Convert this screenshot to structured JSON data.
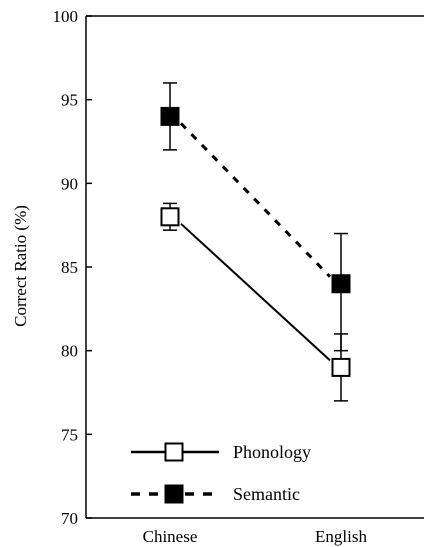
{
  "chart_data": {
    "type": "line",
    "categories": [
      "Chinese",
      "English"
    ],
    "series": [
      {
        "name": "Phonology",
        "values": [
          88,
          79
        ],
        "error": [
          [
            87.2,
            88.8
          ],
          [
            77,
            81
          ]
        ],
        "marker": "open-square",
        "line": "solid",
        "color": "#000000"
      },
      {
        "name": "Semantic",
        "values": [
          94,
          84
        ],
        "error": [
          [
            92,
            96
          ],
          [
            80,
            87
          ]
        ],
        "marker": "filled-square",
        "line": "dashed",
        "color": "#000000"
      }
    ],
    "ylabel": "Correct Ratio (%)",
    "xlabel": "",
    "ylim": [
      70,
      100
    ],
    "yticks": [
      70,
      75,
      80,
      85,
      90,
      95,
      100
    ],
    "grid": false,
    "legend": "bottom-left"
  }
}
